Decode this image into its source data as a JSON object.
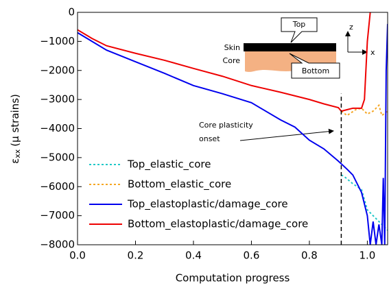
{
  "chart_data": {
    "type": "line",
    "x_label": "Computation progress",
    "y_label": {
      "symbol": "ε",
      "subscript": "xx",
      "text": "(μ strains)"
    },
    "xlim": [
      0,
      1.07
    ],
    "ylim": [
      -8000,
      0
    ],
    "xticks": [
      {
        "value": 0,
        "label": "0.0"
      },
      0.2,
      0.4,
      0.6,
      0.8,
      {
        "value": 1,
        "label": "1.0"
      }
    ],
    "yticks": [
      0,
      {
        "value": -1000,
        "label": "−1000"
      },
      {
        "value": -2000,
        "label": "−2000"
      },
      {
        "value": -3000,
        "label": "−3000"
      },
      {
        "value": -4000,
        "label": "−4000"
      },
      {
        "value": -5000,
        "label": "−5000"
      },
      {
        "value": -6000,
        "label": "−6000"
      },
      {
        "value": -7000,
        "label": "−7000"
      },
      {
        "value": -8000,
        "label": "−8000"
      }
    ],
    "legend": "lower left",
    "vline": 0.91,
    "series": [
      {
        "name": "Top_elastic_core",
        "color": "#1fc8c8",
        "linestyle": "dotted",
        "x": [
          0.91,
          0.92,
          0.95,
          0.98,
          1.0,
          1.02,
          1.05,
          1.07
        ],
        "values": [
          -5600,
          -5650,
          -5900,
          -6100,
          -6800,
          -7000,
          -7300,
          -7500
        ]
      },
      {
        "name": "Bottom_elastic_core",
        "color": "#f5a623",
        "linestyle": "dotted",
        "x": [
          0.91,
          0.93,
          0.96,
          0.98,
          1.0,
          1.02,
          1.04,
          1.05,
          1.07
        ],
        "values": [
          -3400,
          -3550,
          -3350,
          -3300,
          -3500,
          -3400,
          -3200,
          -3550,
          -3400
        ]
      },
      {
        "name": "Top_elastoplastic/damage_core",
        "color": "#0000ee",
        "linestyle": "solid",
        "x": [
          0,
          0.05,
          0.1,
          0.2,
          0.3,
          0.4,
          0.5,
          0.6,
          0.7,
          0.75,
          0.8,
          0.85,
          0.9,
          0.93,
          0.95,
          0.98,
          1.0,
          1.01,
          1.02,
          1.03,
          1.04,
          1.05,
          1.055,
          1.06,
          1.065,
          1.07
        ],
        "values": [
          -700,
          -1000,
          -1300,
          -1700,
          -2100,
          -2520,
          -2800,
          -3110,
          -3700,
          -3950,
          -4400,
          -4700,
          -5120,
          -5400,
          -5600,
          -6200,
          -7000,
          -8000,
          -7200,
          -8000,
          -7300,
          -8000,
          -5700,
          -8000,
          -2000,
          -400
        ]
      },
      {
        "name": "Bottom_elastoplastic/damage_core",
        "color": "#ee0000",
        "linestyle": "solid",
        "x": [
          0,
          0.05,
          0.1,
          0.2,
          0.3,
          0.4,
          0.5,
          0.6,
          0.7,
          0.8,
          0.85,
          0.9,
          0.91,
          0.95,
          0.98,
          0.99,
          1.0,
          1.01
        ],
        "values": [
          -600,
          -900,
          -1150,
          -1410,
          -1650,
          -1930,
          -2200,
          -2520,
          -2750,
          -3000,
          -3150,
          -3280,
          -3400,
          -3300,
          -3300,
          -3000,
          -1000,
          0
        ]
      }
    ],
    "annotations": {
      "onset": [
        "Core plasticity",
        "onset"
      ],
      "top": "Top",
      "skin": "Skin",
      "core": "Core",
      "bottom": "Bottom",
      "z_axis": "z",
      "x_axis": "x"
    }
  }
}
